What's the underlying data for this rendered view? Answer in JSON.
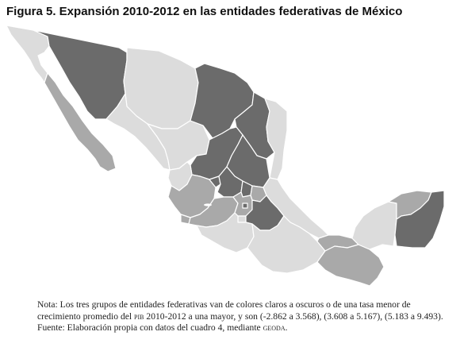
{
  "title": "Figura 5. Expansión 2010-2012 en las entidades federativas de México",
  "legend_groups": [
    {
      "range": "(-2.862 a 3.568)",
      "color": "#dcdcdc"
    },
    {
      "range": "(3.608 a 5.167)",
      "color": "#a9a9a9"
    },
    {
      "range": "(5.183 a 9.493)",
      "color": "#6b6b6b"
    }
  ],
  "note": {
    "prefix": "Nota: Los tres grupos de entidades federativas van de colores claros a oscuros o de una tasa menor de crecimiento promedio del",
    "pib": "pib",
    "middle": "2010-2012 a una mayor, y son (-2.862 a 3.568), (3.608 a 5.167), (5.183 a 9.493).",
    "source_prefix": "Fuente: Elaboración propia con datos del cuadro 4, mediante",
    "geoda": "geoda",
    "source_suffix": "."
  }
}
